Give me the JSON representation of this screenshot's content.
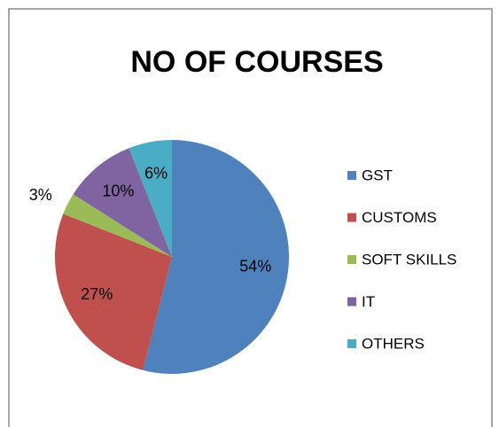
{
  "chart_data": {
    "type": "pie",
    "title": "NO OF COURSES",
    "categories": [
      "GST",
      "CUSTOMS",
      "SOFT SKILLS",
      "IT",
      "OTHERS"
    ],
    "values": [
      54,
      27,
      3,
      10,
      6
    ],
    "value_labels": [
      "54%",
      "27%",
      "3%",
      "10%",
      "6%"
    ],
    "colors": [
      "#4f81bd",
      "#c0504d",
      "#9bbb59",
      "#8064a2",
      "#4bacc6"
    ],
    "legend": "right"
  }
}
